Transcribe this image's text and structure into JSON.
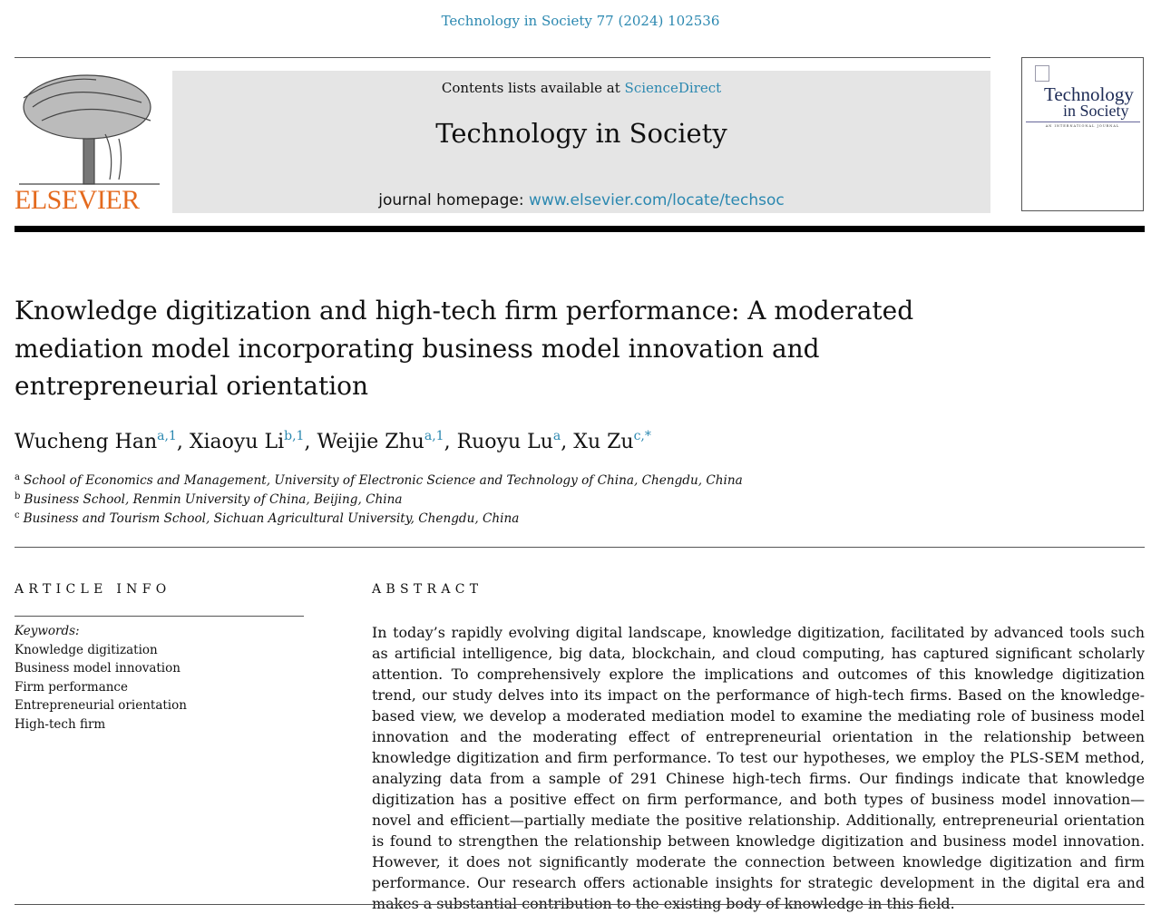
{
  "citation": "Technology in Society 77 (2024) 102536",
  "header": {
    "contents_prefix": "Contents lists available at ",
    "contents_link": "ScienceDirect",
    "journal_title": "Technology in Society",
    "homepage_prefix": "journal homepage: ",
    "homepage_link": "www.elsevier.com/locate/techsoc"
  },
  "publisher_logo": "ELSEVIER",
  "cover": {
    "line1": "Technology",
    "line2": "in Society",
    "subtitle": "AN INTERNATIONAL JOURNAL"
  },
  "colors": {
    "link": "#2b88b0",
    "elsevier": "#e46a1e",
    "banner": "#e5e5e5"
  },
  "title": "Knowledge digitization and high-tech firm performance: A moderated mediation model incorporating business model innovation and entrepreneurial orientation",
  "authors": [
    {
      "name": "Wucheng Han",
      "sup": "a,1"
    },
    {
      "name": "Xiaoyu Li",
      "sup": "b,1"
    },
    {
      "name": "Weijie Zhu",
      "sup": "a,1"
    },
    {
      "name": "Ruoyu Lu",
      "sup": "a"
    },
    {
      "name": "Xu Zu",
      "sup": "c,*"
    }
  ],
  "affiliations": [
    {
      "mark": "a",
      "text": "School of Economics and Management, University of Electronic Science and Technology of China, Chengdu, China"
    },
    {
      "mark": "b",
      "text": "Business School, Renmin University of China, Beijing, China"
    },
    {
      "mark": "c",
      "text": "Business and Tourism School, Sichuan Agricultural University, Chengdu, China"
    }
  ],
  "article_info": {
    "heading": "ARTICLE INFO",
    "keywords_label": "Keywords:",
    "keywords": [
      "Knowledge digitization",
      "Business model innovation",
      "Firm performance",
      "Entrepreneurial orientation",
      "High-tech firm"
    ]
  },
  "abstract": {
    "heading": "ABSTRACT",
    "text": "In today’s rapidly evolving digital landscape, knowledge digitization, facilitated by advanced tools such as artificial intelligence, big data, blockchain, and cloud computing, has captured significant scholarly attention. To comprehensively explore the implications and outcomes of this knowledge digitization trend, our study delves into its impact on the performance of high-tech firms. Based on the knowledge-based view, we develop a moderated mediation model to examine the mediating role of business model innovation and the moderating effect of entrepreneurial orientation in the relationship between knowledge digitization and firm performance. To test our hypotheses, we employ the PLS-SEM method, analyzing data from a sample of 291 Chinese high-tech firms. Our findings indicate that knowledge digitization has a positive effect on firm performance, and both types of business model innovation—novel and efficient—partially mediate the positive relationship. Additionally, entrepreneurial orientation is found to strengthen the relationship between knowledge digitization and business model innovation. However, it does not significantly moderate the connection between knowledge digitization and firm performance. Our research offers actionable insights for strategic development in the digital era and makes a substantial contribution to the existing body of knowledge in this field."
  }
}
